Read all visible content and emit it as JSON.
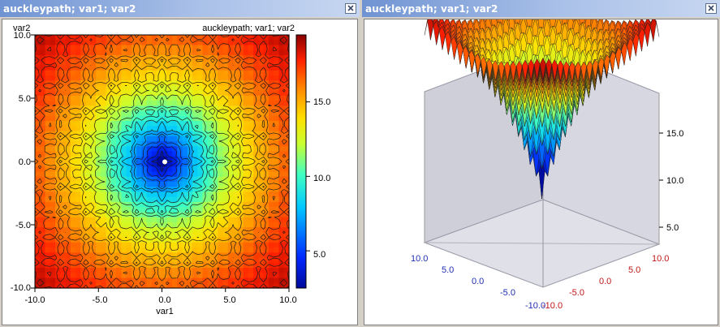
{
  "left_window": {
    "title": "auckleypath; var1; var2",
    "close_icon": "close-icon"
  },
  "right_window": {
    "title": "auckleypath; var1; var2",
    "close_icon": "close-icon"
  },
  "contour_plot": {
    "y_name": "var2",
    "plot_title": "auckleypath; var1; var2",
    "x_label": "var1",
    "x_ticks": [
      "-10.0",
      "-5.0",
      "0.0",
      "5.0",
      "10.0"
    ],
    "y_ticks": [
      "10.0",
      "5.0",
      "0.0",
      "-5.0",
      "-10.0"
    ],
    "colorbar_ticks": [
      "15.0",
      "10.0",
      "5.0"
    ]
  },
  "surface_plot": {
    "z_ticks": [
      "15.0",
      "10.0",
      "5.0"
    ],
    "var1_ticks": [
      "10.0",
      "5.0",
      "0.0",
      "-5.0",
      "-10.0"
    ],
    "var2_ticks": [
      "-10.0",
      "-5.0",
      "0.0",
      "5.0",
      "10.0"
    ]
  },
  "colors": {
    "title_gradient_start": "#6f93d2",
    "axis_blue": "#1f2fb0",
    "axis_red": "#c01818",
    "colormap_low": "#000a9a",
    "colormap_high": "#8a0000"
  },
  "chart_data": [
    {
      "type": "heatmap",
      "title": "auckleypath; var1; var2",
      "xlabel": "var1",
      "ylabel": "var2",
      "xlim": [
        -10,
        10
      ],
      "ylim": [
        -10,
        10
      ],
      "color_range": [
        2.5,
        19.5
      ],
      "colorbar_ticks": [
        5,
        10,
        15
      ],
      "function": "ackley",
      "minimum": {
        "x": 0,
        "y": 0,
        "value": 0
      },
      "contours": true
    },
    {
      "type": "surface",
      "xlabel": "var1",
      "ylabel": "var2",
      "xlim": [
        -10,
        10
      ],
      "ylim": [
        -10,
        10
      ],
      "zlim": [
        0,
        20
      ],
      "z_ticks": [
        5,
        10,
        15
      ],
      "function": "ackley"
    }
  ]
}
